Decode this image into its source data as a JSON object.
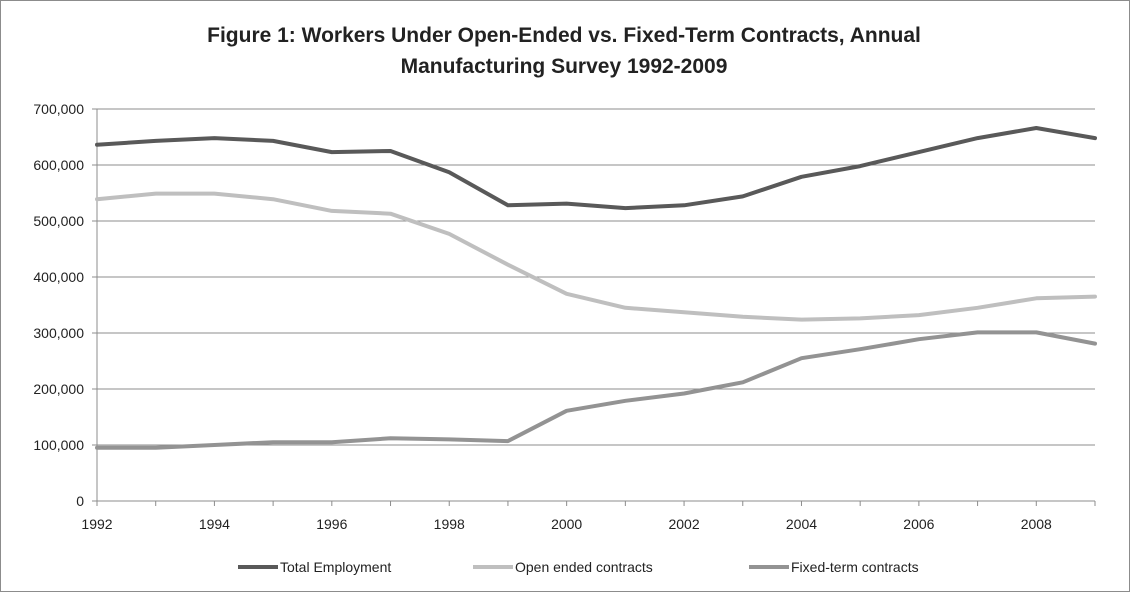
{
  "chart_data": {
    "type": "line",
    "title_lines": [
      "Figure 1: Workers Under Open-Ended vs. Fixed-Term Contracts, Annual",
      "Manufacturing Survey 1992-2009"
    ],
    "x": [
      1992,
      1993,
      1994,
      1995,
      1996,
      1997,
      1998,
      1999,
      2000,
      2001,
      2002,
      2003,
      2004,
      2005,
      2006,
      2007,
      2008,
      2009
    ],
    "xlim": [
      1992,
      2009
    ],
    "xticks": [
      "1992",
      "1994",
      "1996",
      "1998",
      "2000",
      "2002",
      "2004",
      "2006",
      "2008"
    ],
    "ylim": [
      0,
      700000
    ],
    "yticks": [
      "0",
      "100,000",
      "200,000",
      "300,000",
      "400,000",
      "500,000",
      "600,000",
      "700,000"
    ],
    "grid": true,
    "legend_position": "bottom",
    "series": [
      {
        "name": "Total Employment",
        "color": "#595959",
        "values": [
          636000,
          643000,
          648000,
          643000,
          623000,
          625000,
          587000,
          528000,
          531000,
          523000,
          528000,
          544000,
          579000,
          598000,
          623000,
          648000,
          666000,
          648000
        ]
      },
      {
        "name": "Open ended contracts",
        "color": "#bfbfbf",
        "values": [
          539000,
          549000,
          549000,
          539000,
          518000,
          513000,
          477000,
          422000,
          370000,
          345000,
          337000,
          329000,
          324000,
          326000,
          332000,
          345000,
          362000,
          365000
        ]
      },
      {
        "name": "Fixed-term contracts",
        "color": "#939393",
        "values": [
          95000,
          95000,
          100000,
          105000,
          105000,
          112000,
          110000,
          107000,
          161000,
          179000,
          192000,
          212000,
          255000,
          271000,
          289000,
          301000,
          301000,
          281000
        ]
      }
    ]
  }
}
